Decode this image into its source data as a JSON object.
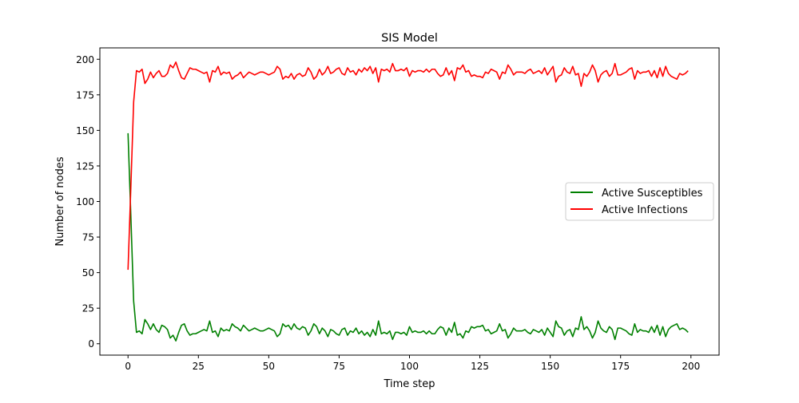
{
  "chart_data": {
    "type": "line",
    "title": "SIS Model",
    "xlabel": "Time step",
    "ylabel": "Number of nodes",
    "xlim": [
      -10,
      210
    ],
    "ylim": [
      -8,
      208
    ],
    "x_ticks": [
      0,
      25,
      50,
      75,
      100,
      125,
      150,
      175,
      200
    ],
    "y_ticks": [
      0,
      25,
      50,
      75,
      100,
      125,
      150,
      175,
      200
    ],
    "grid": false,
    "legend_position": "center-right",
    "x": [
      0,
      1,
      2,
      3,
      4,
      5,
      6,
      7,
      8,
      9,
      10,
      11,
      12,
      13,
      14,
      15,
      16,
      17,
      18,
      19,
      20,
      21,
      22,
      23,
      24,
      25,
      26,
      27,
      28,
      29,
      30,
      31,
      32,
      33,
      34,
      35,
      36,
      37,
      38,
      39,
      40,
      41,
      42,
      43,
      44,
      45,
      46,
      47,
      48,
      49,
      50,
      51,
      52,
      53,
      54,
      55,
      56,
      57,
      58,
      59,
      60,
      61,
      62,
      63,
      64,
      65,
      66,
      67,
      68,
      69,
      70,
      71,
      72,
      73,
      74,
      75,
      76,
      77,
      78,
      79,
      80,
      81,
      82,
      83,
      84,
      85,
      86,
      87,
      88,
      89,
      90,
      91,
      92,
      93,
      94,
      95,
      96,
      97,
      98,
      99,
      100,
      101,
      102,
      103,
      104,
      105,
      106,
      107,
      108,
      109,
      110,
      111,
      112,
      113,
      114,
      115,
      116,
      117,
      118,
      119,
      120,
      121,
      122,
      123,
      124,
      125,
      126,
      127,
      128,
      129,
      130,
      131,
      132,
      133,
      134,
      135,
      136,
      137,
      138,
      139,
      140,
      141,
      142,
      143,
      144,
      145,
      146,
      147,
      148,
      149,
      150,
      151,
      152,
      153,
      154,
      155,
      156,
      157,
      158,
      159,
      160,
      161,
      162,
      163,
      164,
      165,
      166,
      167,
      168,
      169,
      170,
      171,
      172,
      173,
      174,
      175,
      176,
      177,
      178,
      179,
      180,
      181,
      182,
      183,
      184,
      185,
      186,
      187,
      188,
      189,
      190,
      191,
      192,
      193,
      194,
      195,
      196,
      197,
      198,
      199
    ],
    "series": [
      {
        "name": "Active Susceptibles",
        "color": "#008000",
        "values": [
          148,
          90,
          30,
          8,
          9,
          7,
          17,
          14,
          10,
          14,
          10,
          8,
          13,
          12,
          10,
          4,
          6,
          2,
          8,
          13,
          14,
          9,
          6,
          7,
          7,
          8,
          9,
          10,
          9,
          16,
          8,
          9,
          5,
          11,
          9,
          10,
          9,
          14,
          12,
          11,
          9,
          13,
          11,
          9,
          10,
          11,
          10,
          9,
          9,
          10,
          11,
          10,
          9,
          5,
          7,
          14,
          12,
          13,
          10,
          14,
          11,
          10,
          12,
          11,
          6,
          9,
          14,
          12,
          7,
          11,
          9,
          5,
          10,
          9,
          7,
          6,
          10,
          11,
          6,
          9,
          8,
          11,
          7,
          9,
          6,
          8,
          5,
          10,
          6,
          16,
          7,
          8,
          7,
          9,
          3,
          8,
          8,
          7,
          8,
          6,
          12,
          8,
          9,
          8,
          8,
          9,
          7,
          9,
          7,
          7,
          10,
          12,
          11,
          6,
          11,
          8,
          15,
          6,
          7,
          4,
          9,
          8,
          12,
          11,
          12,
          12,
          13,
          9,
          10,
          7,
          8,
          9,
          14,
          9,
          10,
          4,
          7,
          11,
          9,
          9,
          9,
          10,
          8,
          7,
          10,
          9,
          8,
          10,
          6,
          11,
          8,
          5,
          16,
          12,
          11,
          6,
          9,
          10,
          5,
          11,
          10,
          19,
          10,
          12,
          9,
          4,
          8,
          16,
          11,
          9,
          8,
          12,
          10,
          3,
          11,
          11,
          10,
          9,
          7,
          6,
          14,
          8,
          10,
          9,
          9,
          8,
          12,
          8,
          13,
          6,
          12,
          5,
          10,
          12,
          13,
          14,
          10,
          11,
          10,
          8
        ]
      },
      {
        "name": "Active Infections",
        "color": "#ff0000",
        "values": [
          52,
          110,
          170,
          192,
          191,
          193,
          183,
          186,
          191,
          187,
          190,
          192,
          188,
          188,
          190,
          196,
          194,
          198,
          192,
          187,
          186,
          190,
          194,
          193,
          193,
          192,
          191,
          190,
          191,
          184,
          192,
          191,
          195,
          189,
          191,
          190,
          191,
          186,
          188,
          189,
          191,
          187,
          189,
          191,
          190,
          189,
          190,
          191,
          191,
          190,
          189,
          190,
          191,
          195,
          193,
          186,
          188,
          187,
          190,
          186,
          189,
          190,
          188,
          189,
          194,
          191,
          186,
          188,
          193,
          189,
          191,
          195,
          190,
          191,
          193,
          194,
          190,
          189,
          194,
          191,
          192,
          189,
          193,
          191,
          194,
          192,
          195,
          190,
          194,
          184,
          193,
          192,
          193,
          191,
          197,
          192,
          192,
          193,
          192,
          194,
          188,
          192,
          191,
          192,
          192,
          191,
          193,
          191,
          193,
          193,
          190,
          188,
          189,
          194,
          189,
          192,
          185,
          194,
          193,
          196,
          191,
          192,
          188,
          189,
          188,
          188,
          187,
          191,
          190,
          193,
          192,
          191,
          186,
          191,
          190,
          196,
          193,
          189,
          191,
          191,
          191,
          190,
          192,
          193,
          190,
          191,
          192,
          190,
          194,
          189,
          192,
          195,
          184,
          188,
          189,
          194,
          191,
          190,
          195,
          189,
          190,
          181,
          190,
          188,
          191,
          196,
          192,
          184,
          189,
          191,
          192,
          188,
          190,
          197,
          189,
          189,
          190,
          191,
          193,
          194,
          186,
          192,
          190,
          191,
          191,
          192,
          188,
          192,
          187,
          194,
          188,
          195,
          190,
          188,
          187,
          186,
          190,
          189,
          190,
          192
        ]
      }
    ]
  }
}
